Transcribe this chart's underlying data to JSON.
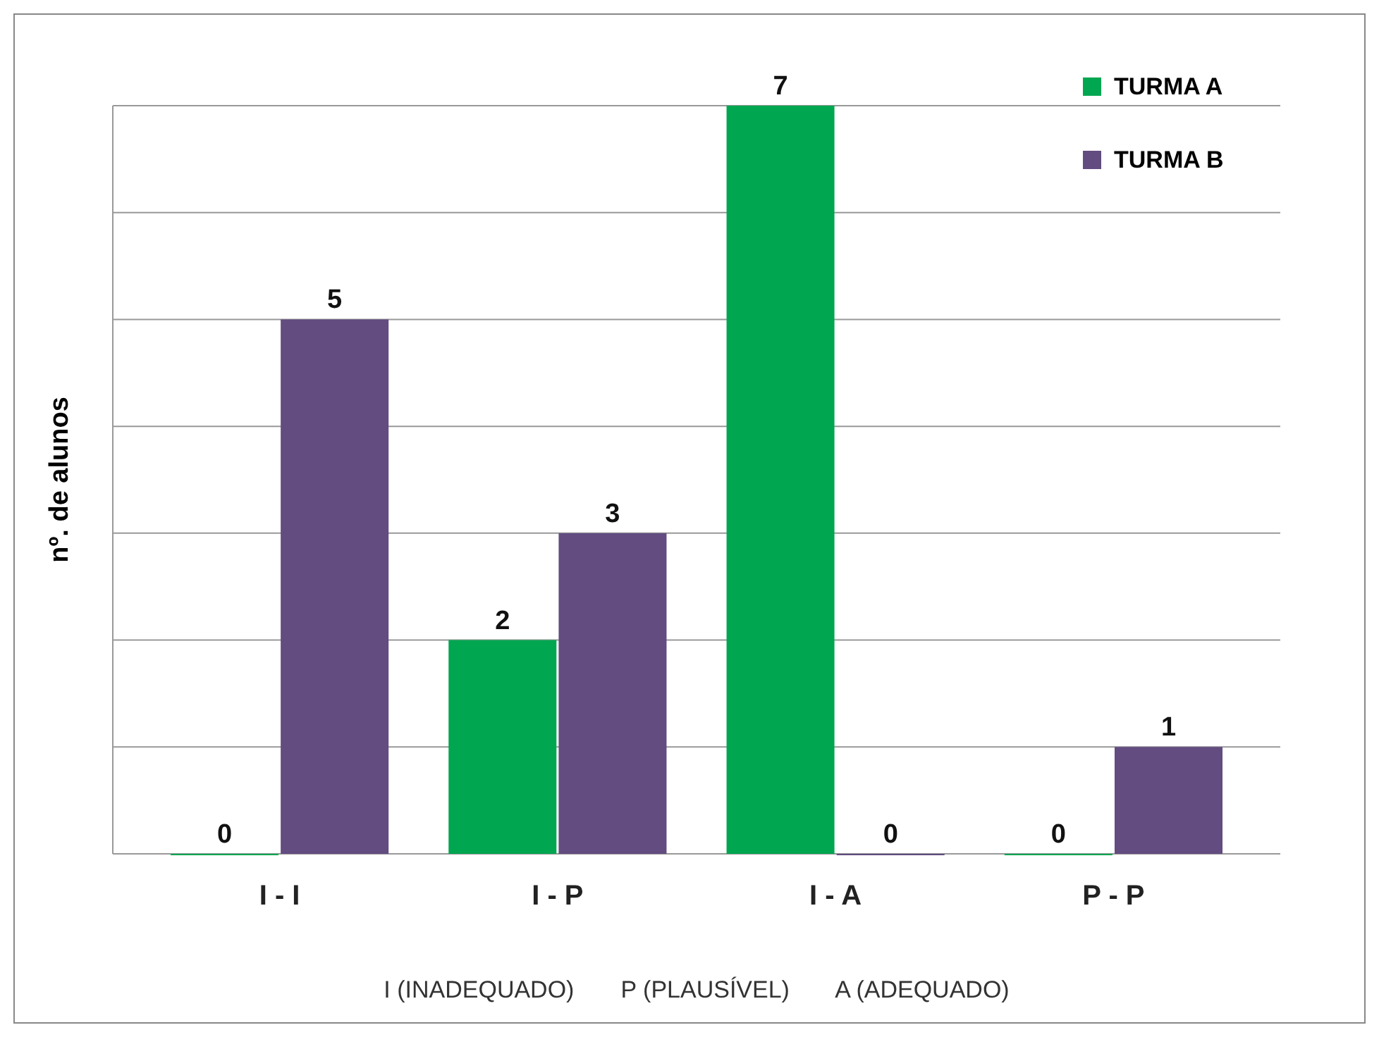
{
  "chart_data": {
    "type": "bar",
    "xlabel": "I (INADEQUADO)       P (PLAUSÍVEL)       A (ADEQUADO)",
    "ylabel": "nº. de alunos",
    "categories": [
      "I - I",
      "I - P",
      "I - A",
      "P - P"
    ],
    "series": [
      {
        "name": "TURMA A",
        "color": "#00a650",
        "values": [
          0,
          2,
          7,
          0
        ]
      },
      {
        "name": "TURMA B",
        "color": "#624c80",
        "values": [
          5,
          3,
          0,
          1
        ]
      }
    ],
    "ylim": [
      0,
      7
    ],
    "yticks": [
      {
        "value": 0,
        "label": null
      },
      {
        "value": 1,
        "label": null
      },
      {
        "value": 2,
        "label": null
      },
      {
        "value": 3,
        "label": null
      },
      {
        "value": 4,
        "label": null
      },
      {
        "value": 5,
        "label": null
      },
      {
        "value": 6,
        "label": null
      },
      {
        "value": 7,
        "label": null
      }
    ],
    "grid": "y",
    "tick_labels": "x",
    "data_labels": true,
    "legend": "top right"
  }
}
